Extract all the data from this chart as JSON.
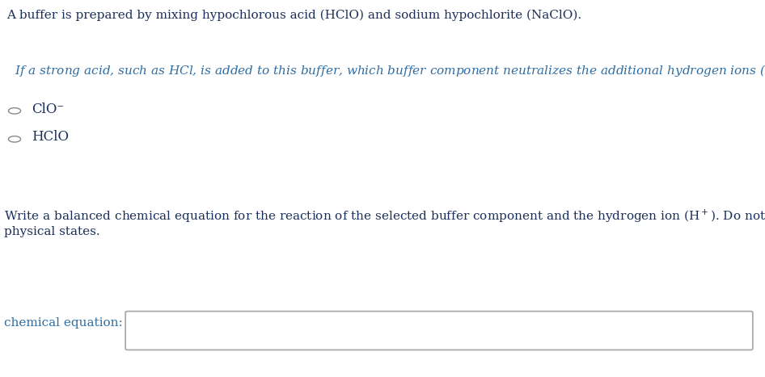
{
  "bg_color": "#ffffff",
  "dark_blue": "#1a2e5a",
  "teal_blue": "#2a6496",
  "line1": "A buffer is prepared by mixing hypochlorous acid (HClO) and sodium hypochlorite (NaClO).",
  "q_main": "If a strong acid, such as HCl, is added to this buffer, which buffer component neutralizes the additional hydrogen ions (H",
  "q_sup": "+",
  "q_end": ")?",
  "radio1_label": "ClO⁻",
  "radio2_label": "HClO",
  "write_main": "Write a balanced chemical equation for the reaction of the selected buffer component and the hydrogen ion (H",
  "write_sup": "+",
  "write_end": "). Do not include",
  "write_line2": "physical states.",
  "eq_label": "chemical equation:",
  "font_size": 11.0,
  "dark_blue_color": "#1a2e5a",
  "teal_color": "#2e6da4",
  "radio_color": "#888888",
  "box_edge_color": "#aaaaaa"
}
